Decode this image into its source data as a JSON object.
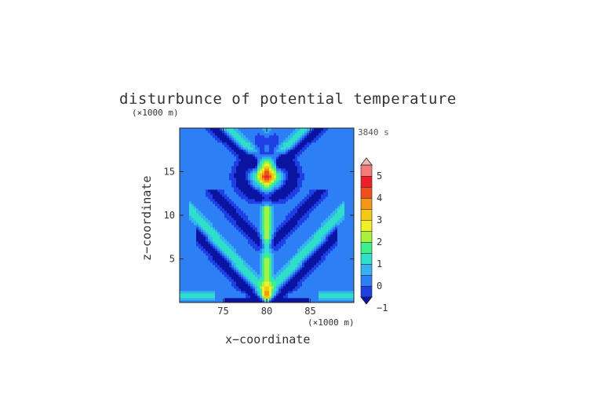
{
  "chart_data": {
    "type": "heatmap",
    "title": "disturbunce of potential temperature",
    "x_unit": "(×1000 m)",
    "z_unit": "(×1000 m)",
    "time_label": "3840 s",
    "xlabel": "x−coordinate",
    "ylabel": "z−coordinate",
    "xlim": [
      70,
      90
    ],
    "ylim": [
      0,
      20
    ],
    "x_ticks": [
      75,
      80,
      85
    ],
    "y_ticks": [
      5,
      10,
      15
    ],
    "colorbar": {
      "min": -1,
      "max": 5,
      "step": 0.5,
      "ticks": [
        -1,
        0,
        1,
        2,
        3,
        4,
        5
      ],
      "colors": [
        "#0a14a0",
        "#1e3ee6",
        "#2d7ff5",
        "#34b3f0",
        "#2ee0c8",
        "#3ef08a",
        "#a8f23a",
        "#f0f028",
        "#f5c814",
        "#f59614",
        "#f0501e",
        "#f01e28",
        "#f57a7a",
        "#f5b4b4"
      ],
      "extend": "both"
    }
  }
}
